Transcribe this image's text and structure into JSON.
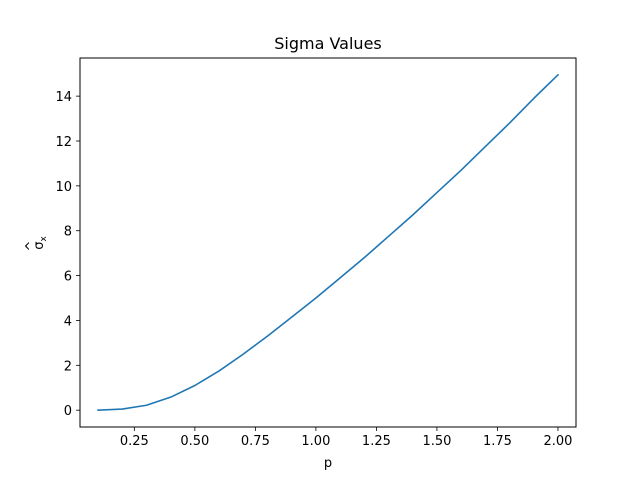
{
  "chart_data": {
    "type": "line",
    "title": "Sigma Values",
    "xlabel": "p",
    "ylabel_base": "σ",
    "ylabel_accent": "^",
    "ylabel_sub": "x",
    "xlim": [
      0.0255,
      2.0745
    ],
    "ylim": [
      -0.75,
      15.7
    ],
    "xticks": [
      0.25,
      0.5,
      0.75,
      1.0,
      1.25,
      1.5,
      1.75,
      2.0
    ],
    "xtick_labels": [
      "0.25",
      "0.50",
      "0.75",
      "1.00",
      "1.25",
      "1.50",
      "1.75",
      "2.00"
    ],
    "yticks": [
      0,
      2,
      4,
      6,
      8,
      10,
      12,
      14
    ],
    "ytick_labels": [
      "0",
      "2",
      "4",
      "6",
      "8",
      "10",
      "12",
      "14"
    ],
    "grid": false,
    "series": [
      {
        "color": "#1f77b4",
        "x": [
          0.1,
          0.2,
          0.3,
          0.4,
          0.5,
          0.6,
          0.7,
          0.8,
          0.9,
          1.0,
          1.1,
          1.2,
          1.3,
          1.4,
          1.5,
          1.6,
          1.7,
          1.8,
          1.9,
          2.0
        ],
        "y": [
          0.0,
          0.05,
          0.22,
          0.58,
          1.1,
          1.75,
          2.5,
          3.3,
          4.15,
          5.0,
          5.9,
          6.8,
          7.75,
          8.7,
          9.7,
          10.7,
          11.75,
          12.8,
          13.9,
          14.95
        ]
      }
    ]
  }
}
